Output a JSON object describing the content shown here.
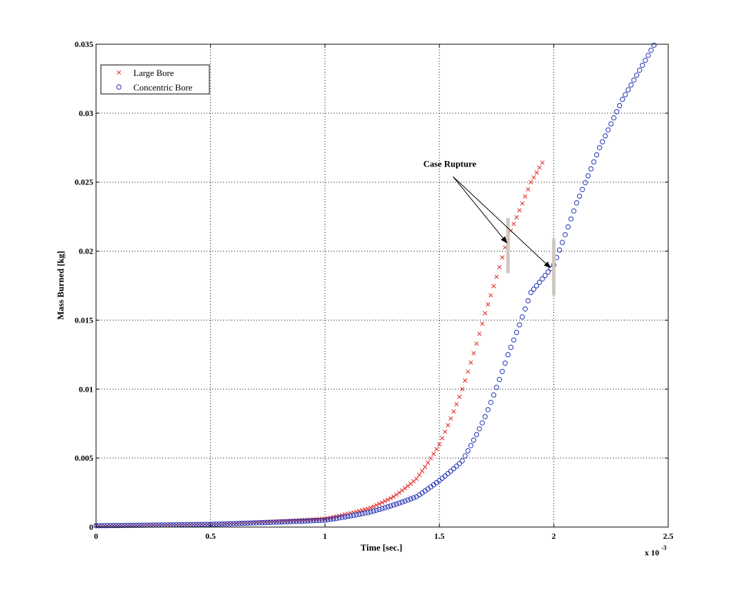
{
  "chart_data": {
    "type": "scatter",
    "title": "",
    "xlabel": "Time [sec.]",
    "ylabel": "Mass Burned [kg]",
    "x_multiplier_label": "x 10",
    "x_multiplier_exponent": "-3",
    "xlim": [
      0,
      2.5
    ],
    "ylim": [
      0,
      0.035
    ],
    "x_ticks": [
      "0",
      "0.5",
      "1",
      "1.5",
      "2",
      "2.5"
    ],
    "y_ticks": [
      "0",
      "0.005",
      "0.01",
      "0.015",
      "0.02",
      "0.025",
      "0.03",
      "0.035"
    ],
    "grid": true,
    "legend_position": "top-left",
    "series": [
      {
        "name": "Large Bore",
        "marker": "x",
        "color": "#e0261f",
        "x_range": [
          0,
          1.96
        ],
        "key_points": [
          [
            0,
            0.0001
          ],
          [
            0.5,
            0.0002
          ],
          [
            1.0,
            0.0006
          ],
          [
            1.2,
            0.0014
          ],
          [
            1.3,
            0.0022
          ],
          [
            1.4,
            0.0035
          ],
          [
            1.5,
            0.006
          ],
          [
            1.6,
            0.01
          ],
          [
            1.7,
            0.0155
          ],
          [
            1.8,
            0.021
          ],
          [
            1.9,
            0.025
          ],
          [
            1.96,
            0.0267
          ]
        ]
      },
      {
        "name": "Concentric Bore",
        "marker": "o",
        "color": "#1f2fb3",
        "x_range": [
          0,
          2.44
        ],
        "key_points": [
          [
            0,
            0.0001
          ],
          [
            0.5,
            0.0002
          ],
          [
            1.0,
            0.0005
          ],
          [
            1.2,
            0.0011
          ],
          [
            1.4,
            0.0022
          ],
          [
            1.6,
            0.0048
          ],
          [
            1.7,
            0.008
          ],
          [
            1.8,
            0.0125
          ],
          [
            1.9,
            0.017
          ],
          [
            2.0,
            0.019
          ],
          [
            2.1,
            0.0235
          ],
          [
            2.2,
            0.0275
          ],
          [
            2.3,
            0.031
          ],
          [
            2.44,
            0.035
          ]
        ]
      }
    ],
    "annotation": {
      "text": "Case Rupture",
      "markers": [
        {
          "x": 1.8,
          "y_range": [
            0.0184,
            0.0224
          ]
        },
        {
          "x": 2.0,
          "y_range": [
            0.0168,
            0.0209
          ]
        }
      ],
      "text_anchor": [
        1.43,
        0.0261
      ],
      "arrow_from": [
        1.56,
        0.0254
      ],
      "arrow_targets": [
        [
          1.795,
          0.0206
        ],
        [
          1.985,
          0.0188
        ]
      ]
    }
  }
}
